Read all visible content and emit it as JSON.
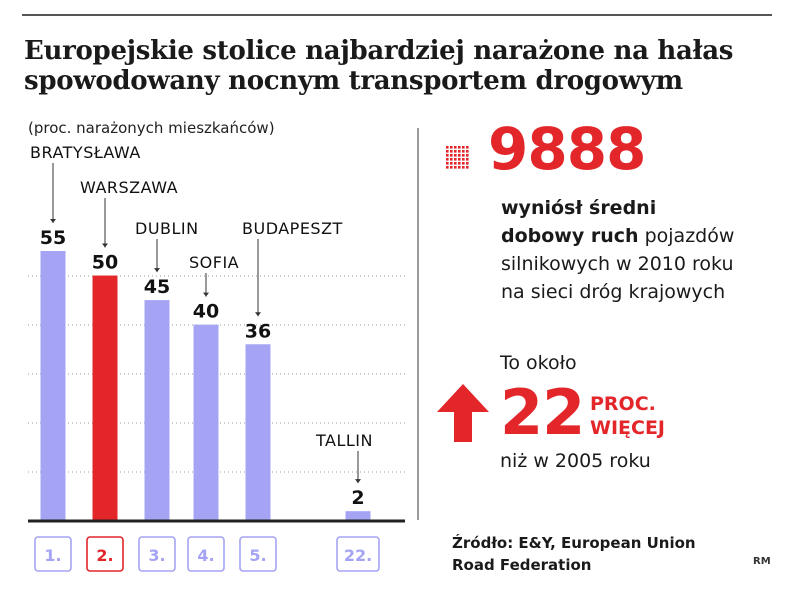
{
  "header": {
    "title_line1": "Europejskie stolice najbardziej narażone na hałas",
    "title_line2": "spowodowany nocnym transportem drogowym"
  },
  "chart_data": {
    "type": "bar",
    "subtitle": "(proc. narażonych mieszkańców)",
    "categories": [
      "BRATYSŁAWA",
      "WARSZAWA",
      "DUBLIN",
      "SOFIA",
      "BUDAPESZT",
      "TALLIN"
    ],
    "values": [
      55,
      50,
      45,
      40,
      36,
      2
    ],
    "ranks": [
      "1.",
      "2.",
      "3.",
      "4.",
      "5.",
      "22."
    ],
    "highlight_index": 1,
    "ylim": [
      0,
      55
    ],
    "grid": true,
    "colors": {
      "bar": "#a5a4f4",
      "highlight": "#e3262a",
      "axis": "#222222",
      "grid": "#9a9a9a"
    }
  },
  "stats": {
    "big_number": "9888",
    "desc_bold_1": "wyniósł średni",
    "desc_bold_2": "dobowy ruch",
    "desc_rest_2": " pojazdów",
    "desc_line_3": "silnikowych w 2010 roku",
    "desc_line_4": "na sieci dróg krajowych",
    "approx_label": "To około",
    "increase_number": "22",
    "increase_unit_1": "PROC.",
    "increase_unit_2": "WIĘCEJ",
    "compare_label": "niż w 2005 roku"
  },
  "footer": {
    "source_line1": "Źródło: E&Y, European Union",
    "source_line2": "Road Federation",
    "credit": "RM"
  },
  "icons": {
    "dot_grid": "dot-grid-icon",
    "arrow": "arrow-up-icon"
  }
}
